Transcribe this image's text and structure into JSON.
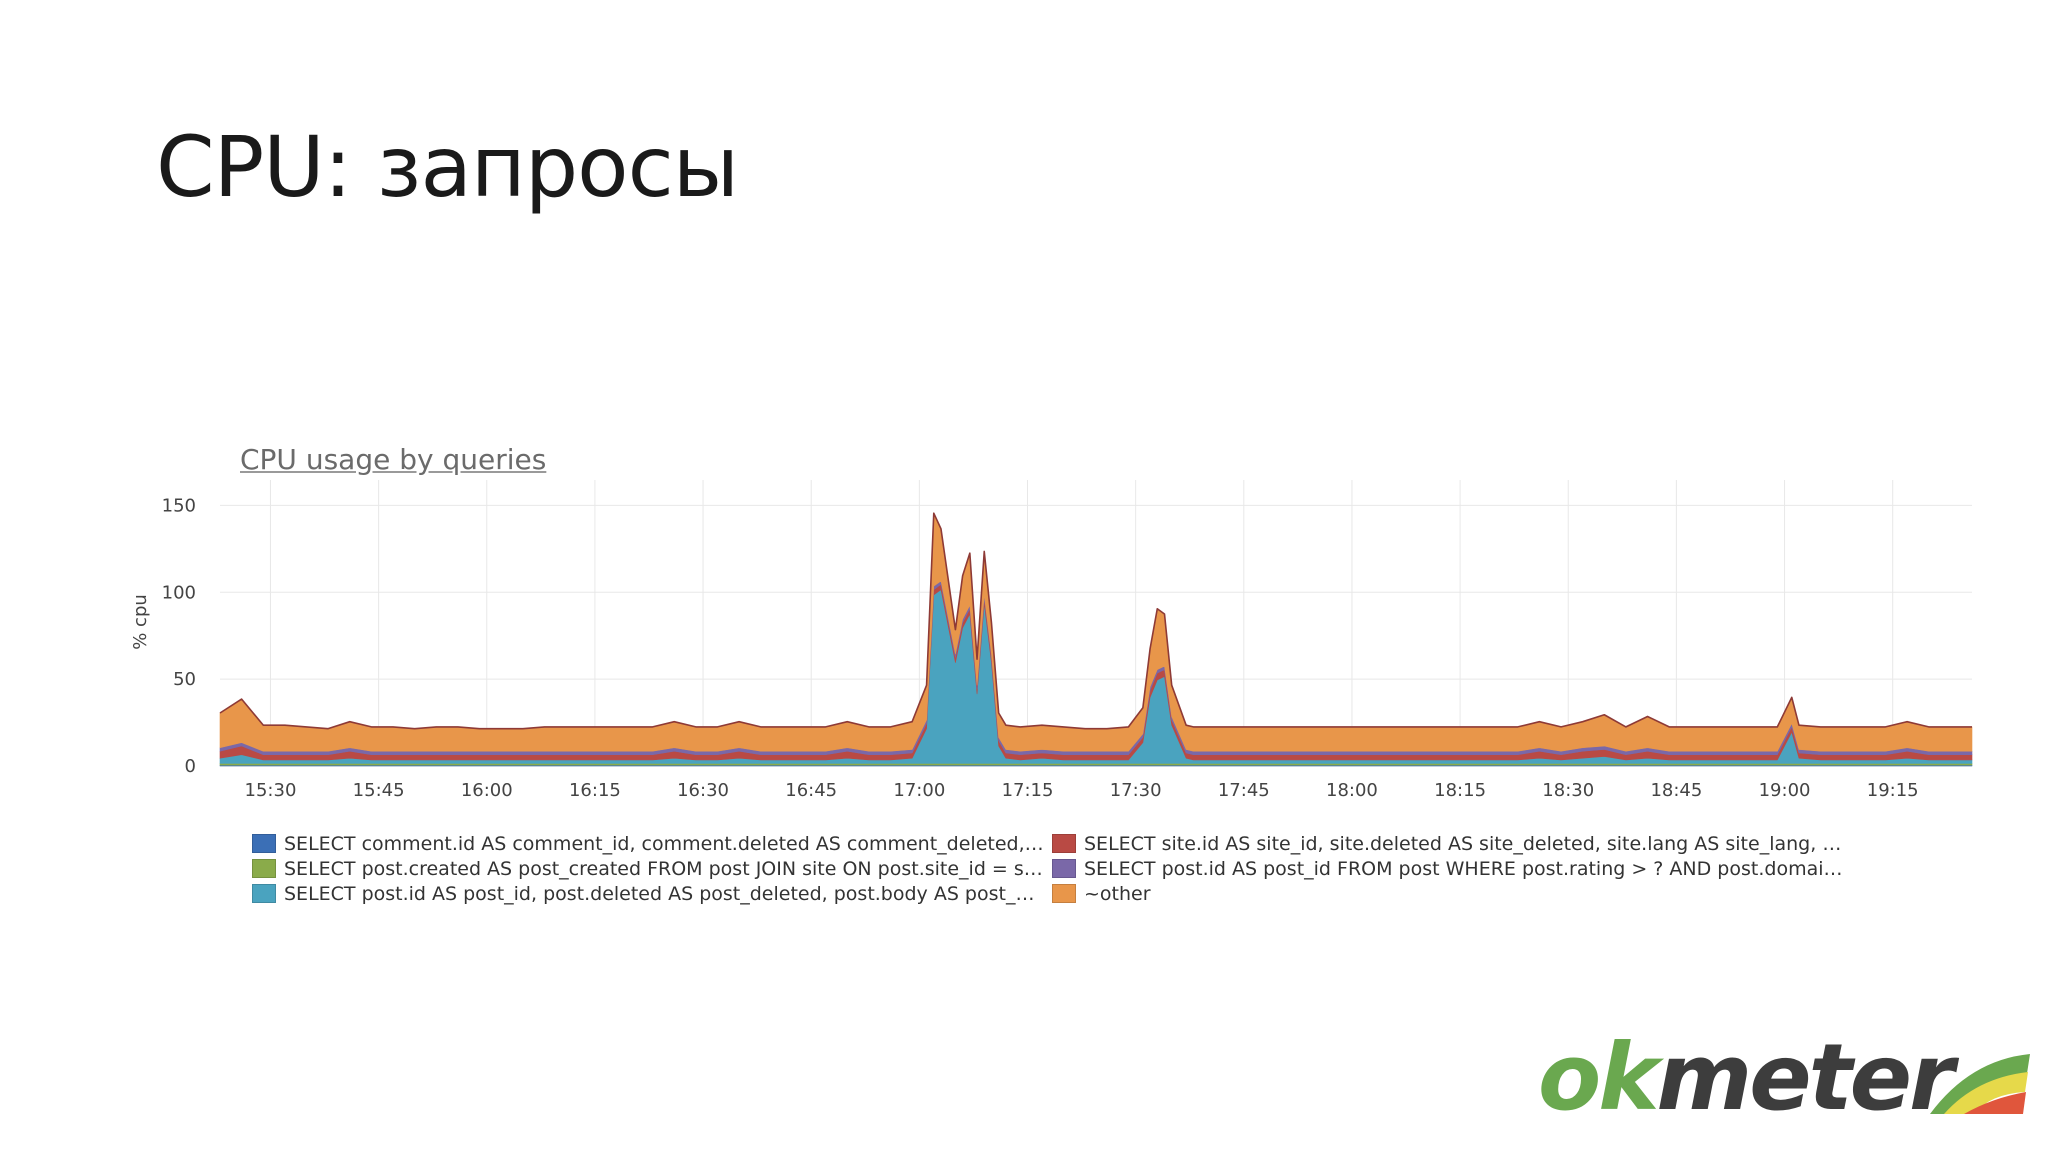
{
  "slide": {
    "title": "CPU: запросы"
  },
  "logo": {
    "ok": "ok",
    "meter": "meter",
    "icon": "okmeter-wedge-icon",
    "colors": [
      "#6aa84f",
      "#e6d94a",
      "#e0563c"
    ]
  },
  "chart_data": {
    "type": "area",
    "stacked": true,
    "title": "CPU usage by queries",
    "xlabel": "",
    "ylabel": "% cpu",
    "ylim": [
      0,
      160
    ],
    "yticks": [
      0,
      50,
      100,
      150
    ],
    "xlim": [
      "15:23",
      "19:26"
    ],
    "xticks": [
      "15:30",
      "15:45",
      "16:00",
      "16:15",
      "16:30",
      "16:45",
      "17:00",
      "17:15",
      "17:30",
      "17:45",
      "18:00",
      "18:15",
      "18:30",
      "18:45",
      "19:00",
      "19:15"
    ],
    "grid": true,
    "legend_position": "bottom",
    "x": [
      "15:23",
      "15:26",
      "15:29",
      "15:32",
      "15:35",
      "15:38",
      "15:41",
      "15:44",
      "15:47",
      "15:50",
      "15:53",
      "15:56",
      "15:59",
      "16:02",
      "16:05",
      "16:08",
      "16:11",
      "16:14",
      "16:17",
      "16:20",
      "16:23",
      "16:26",
      "16:29",
      "16:32",
      "16:35",
      "16:38",
      "16:41",
      "16:44",
      "16:47",
      "16:50",
      "16:53",
      "16:56",
      "16:59",
      "17:01",
      "17:02",
      "17:03",
      "17:05",
      "17:06",
      "17:07",
      "17:08",
      "17:09",
      "17:10",
      "17:11",
      "17:12",
      "17:14",
      "17:17",
      "17:20",
      "17:23",
      "17:26",
      "17:29",
      "17:31",
      "17:32",
      "17:33",
      "17:34",
      "17:35",
      "17:37",
      "17:38",
      "17:41",
      "17:44",
      "17:47",
      "17:50",
      "17:53",
      "17:56",
      "17:59",
      "18:02",
      "18:05",
      "18:08",
      "18:11",
      "18:14",
      "18:17",
      "18:20",
      "18:23",
      "18:26",
      "18:29",
      "18:32",
      "18:35",
      "18:38",
      "18:41",
      "18:44",
      "18:47",
      "18:50",
      "18:53",
      "18:56",
      "18:59",
      "19:01",
      "19:02",
      "19:05",
      "19:08",
      "19:11",
      "19:14",
      "19:17",
      "19:20",
      "19:23",
      "19:26"
    ],
    "series": [
      {
        "name": "SELECT comment.id AS comment_id, comment.deleted AS comment_deleted, c...",
        "color": "#3b6fb6",
        "values": [
          0.5,
          0.5,
          0.5,
          0.5,
          0.5,
          0.5,
          0.5,
          0.5,
          0.5,
          0.5,
          0.5,
          0.5,
          0.5,
          0.5,
          0.5,
          0.5,
          0.5,
          0.5,
          0.5,
          0.5,
          0.5,
          0.5,
          0.5,
          0.5,
          0.5,
          0.5,
          0.5,
          0.5,
          0.5,
          0.5,
          0.5,
          0.5,
          0.5,
          0.5,
          0.5,
          0.5,
          0.5,
          0.5,
          0.5,
          0.5,
          0.5,
          0.5,
          0.5,
          0.5,
          0.5,
          0.5,
          0.5,
          0.5,
          0.5,
          0.5,
          0.5,
          0.5,
          0.5,
          0.5,
          0.5,
          0.5,
          0.5,
          0.5,
          0.5,
          0.5,
          0.5,
          0.5,
          0.5,
          0.5,
          0.5,
          0.5,
          0.5,
          0.5,
          0.5,
          0.5,
          0.5,
          0.5,
          0.5,
          0.5,
          0.5,
          0.5,
          0.5,
          0.5,
          0.5,
          0.5,
          0.5,
          0.5,
          0.5,
          0.5,
          0.5,
          0.5,
          0.5,
          0.5,
          0.5,
          0.5,
          0.5,
          0.5,
          0.5,
          0.5
        ]
      },
      {
        "name": "SELECT post.created AS post_created FROM post JOIN site ON post.site_id = si...",
        "color": "#8aab4a",
        "values": [
          1,
          1,
          1,
          1,
          1,
          1,
          1,
          1,
          1,
          1,
          1,
          1,
          1,
          1,
          1,
          1,
          1,
          1,
          1,
          1,
          1,
          1,
          1,
          1,
          1,
          1,
          1,
          1,
          1,
          1,
          1,
          1,
          1,
          1,
          1,
          1,
          1,
          1,
          1,
          1,
          1,
          1,
          1,
          1,
          1,
          1,
          1,
          1,
          1,
          1,
          1,
          1,
          1,
          1,
          1,
          1,
          1,
          1,
          1,
          1,
          1,
          1,
          1,
          1,
          1,
          1,
          1,
          1,
          1,
          1,
          1,
          1,
          1,
          1,
          1,
          1,
          1,
          1,
          1,
          1,
          1,
          1,
          1,
          1,
          1,
          1,
          1,
          1,
          1,
          1,
          1,
          1,
          1,
          1
        ]
      },
      {
        "name": "SELECT post.id AS post_id, post.deleted AS post_deleted, post.body AS post_b...",
        "color": "#4aa3bf",
        "values": [
          3,
          5,
          2,
          2,
          2,
          2,
          3,
          2,
          2,
          2,
          2,
          2,
          2,
          2,
          2,
          2,
          2,
          2,
          2,
          2,
          2,
          3,
          2,
          2,
          3,
          2,
          2,
          2,
          2,
          3,
          2,
          2,
          3,
          20,
          97,
          100,
          58,
          78,
          86,
          40,
          92,
          58,
          10,
          3,
          2,
          3,
          2,
          2,
          2,
          2,
          12,
          38,
          48,
          50,
          22,
          3,
          2,
          2,
          2,
          2,
          2,
          2,
          2,
          2,
          2,
          2,
          2,
          2,
          2,
          2,
          2,
          2,
          3,
          2,
          3,
          4,
          2,
          3,
          2,
          2,
          2,
          2,
          2,
          2,
          18,
          3,
          2,
          2,
          2,
          2,
          3,
          2,
          2,
          2
        ]
      },
      {
        "name": "SELECT site.id AS site_id, site.deleted AS site_deleted, site.lang AS site_lang, si...",
        "color": "#b94a44",
        "values": [
          4,
          5,
          3,
          3,
          3,
          3,
          4,
          3,
          3,
          3,
          3,
          3,
          3,
          3,
          3,
          3,
          3,
          3,
          3,
          3,
          3,
          4,
          3,
          3,
          4,
          3,
          3,
          3,
          3,
          4,
          3,
          3,
          3,
          3,
          3,
          3,
          3,
          3,
          3,
          3,
          3,
          3,
          3,
          3,
          3,
          3,
          3,
          3,
          3,
          3,
          3,
          4,
          4,
          4,
          3,
          3,
          3,
          3,
          3,
          3,
          3,
          3,
          3,
          3,
          3,
          3,
          3,
          3,
          3,
          3,
          3,
          3,
          4,
          3,
          4,
          4,
          3,
          4,
          3,
          3,
          3,
          3,
          3,
          3,
          3,
          3,
          3,
          3,
          3,
          3,
          4,
          3,
          3,
          3
        ]
      },
      {
        "name": "SELECT post.id AS post_id FROM post WHERE post.rating > ? AND post.domain...",
        "color": "#7a68a8",
        "values": [
          2,
          2,
          2,
          2,
          2,
          2,
          2,
          2,
          2,
          2,
          2,
          2,
          2,
          2,
          2,
          2,
          2,
          2,
          2,
          2,
          2,
          2,
          2,
          2,
          2,
          2,
          2,
          2,
          2,
          2,
          2,
          2,
          2,
          2,
          2,
          2,
          2,
          2,
          2,
          2,
          2,
          2,
          2,
          2,
          2,
          2,
          2,
          2,
          2,
          2,
          2,
          2,
          2,
          2,
          2,
          2,
          2,
          2,
          2,
          2,
          2,
          2,
          2,
          2,
          2,
          2,
          2,
          2,
          2,
          2,
          2,
          2,
          2,
          2,
          2,
          2,
          2,
          2,
          2,
          2,
          2,
          2,
          2,
          2,
          2,
          2,
          2,
          2,
          2,
          2,
          2,
          2,
          2,
          2
        ]
      },
      {
        "name": "~other",
        "color": "#e8964a",
        "values": [
          20,
          25,
          15,
          15,
          14,
          13,
          15,
          14,
          14,
          13,
          14,
          14,
          13,
          13,
          13,
          14,
          14,
          14,
          14,
          14,
          14,
          15,
          14,
          14,
          15,
          14,
          14,
          14,
          14,
          15,
          14,
          14,
          16,
          20,
          42,
          30,
          14,
          25,
          30,
          15,
          25,
          18,
          14,
          14,
          14,
          14,
          14,
          13,
          13,
          14,
          15,
          22,
          35,
          30,
          18,
          14,
          14,
          14,
          14,
          14,
          14,
          14,
          14,
          14,
          14,
          14,
          14,
          14,
          14,
          14,
          14,
          14,
          15,
          14,
          15,
          18,
          14,
          18,
          14,
          14,
          14,
          14,
          14,
          14,
          15,
          14,
          14,
          14,
          14,
          14,
          15,
          14,
          14,
          14
        ]
      }
    ]
  }
}
